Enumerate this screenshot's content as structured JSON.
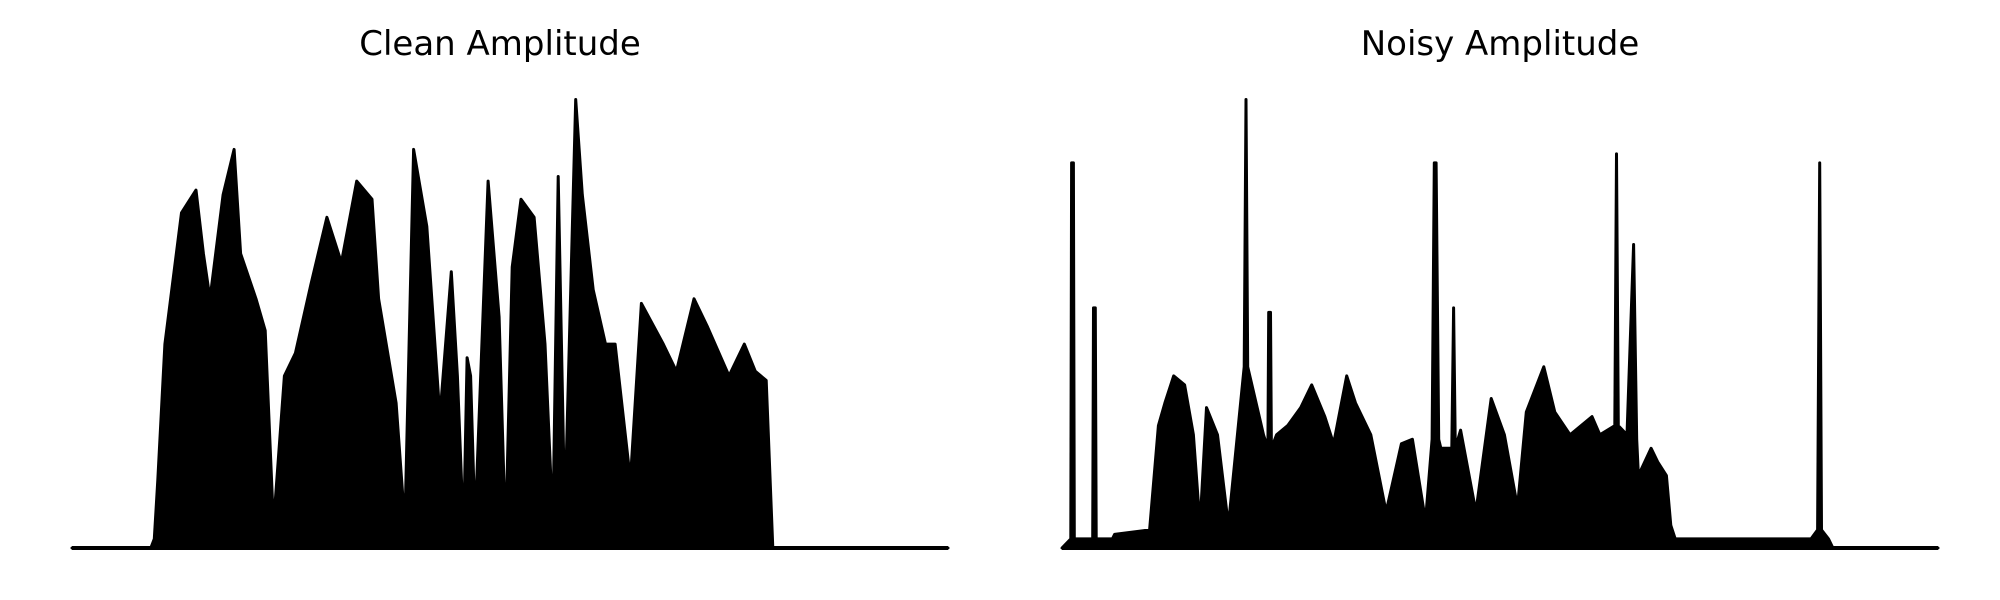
{
  "chart_data": [
    {
      "type": "area",
      "title": "Clean Amplitude",
      "xlabel": "",
      "ylabel": "",
      "axes": "off",
      "grid": false,
      "color": "#000000",
      "xlim": [
        0,
        2000
      ],
      "ylim": [
        0,
        1.0
      ],
      "x": [
        0,
        180,
        188,
        196,
        212,
        250,
        283,
        300,
        315,
        345,
        370,
        385,
        420,
        441,
        460,
        485,
        510,
        545,
        582,
        615,
        650,
        685,
        700,
        740,
        760,
        780,
        810,
        840,
        866,
        880,
        894,
        902,
        910,
        920,
        950,
        975,
        990,
        1005,
        1025,
        1055,
        1080,
        1098,
        1110,
        1125,
        1150,
        1165,
        1190,
        1218,
        1240,
        1275,
        1300,
        1350,
        1380,
        1420,
        1450,
        1500,
        1535,
        1560,
        1585,
        1600,
        2000
      ],
      "y": [
        0,
        0,
        0.02,
        0.15,
        0.45,
        0.74,
        0.79,
        0.65,
        0.55,
        0.78,
        0.88,
        0.65,
        0.55,
        0.48,
        0.05,
        0.38,
        0.43,
        0.58,
        0.73,
        0.63,
        0.81,
        0.77,
        0.55,
        0.32,
        0.05,
        0.88,
        0.71,
        0.29,
        0.61,
        0.38,
        0.03,
        0.42,
        0.38,
        0.05,
        0.81,
        0.51,
        0.02,
        0.62,
        0.77,
        0.73,
        0.45,
        0.05,
        0.82,
        0.07,
        0.99,
        0.78,
        0.57,
        0.45,
        0.45,
        0.15,
        0.54,
        0.45,
        0.39,
        0.55,
        0.49,
        0.38,
        0.45,
        0.39,
        0.37,
        0.0,
        0.0
      ]
    },
    {
      "type": "area",
      "title": "Noisy Amplitude",
      "xlabel": "",
      "ylabel": "",
      "axes": "off",
      "grid": false,
      "color": "#000000",
      "xlim": [
        0,
        2000
      ],
      "ylim": [
        0,
        1.0
      ],
      "x": [
        0,
        20,
        22,
        26,
        28,
        70,
        72,
        76,
        78,
        115,
        120,
        200,
        220,
        235,
        255,
        280,
        300,
        315,
        330,
        355,
        380,
        416,
        420,
        424,
        460,
        470,
        472,
        476,
        478,
        490,
        515,
        545,
        570,
        600,
        620,
        650,
        670,
        705,
        740,
        775,
        800,
        830,
        845,
        850,
        854,
        860,
        865,
        890,
        894,
        898,
        910,
        945,
        980,
        1010,
        1040,
        1060,
        1100,
        1125,
        1160,
        1210,
        1228,
        1262,
        1266,
        1270,
        1290,
        1305,
        1312,
        1316,
        1345,
        1360,
        1380,
        1390,
        1400,
        1710,
        1725,
        1730,
        1734,
        1750,
        1760,
        2000
      ],
      "y": [
        0,
        0.02,
        0.85,
        0.85,
        0.02,
        0.02,
        0.53,
        0.53,
        0.02,
        0.02,
        0.03,
        0.04,
        0.27,
        0.32,
        0.38,
        0.36,
        0.25,
        0.05,
        0.31,
        0.25,
        0.05,
        0.4,
        0.99,
        0.4,
        0.25,
        0.22,
        0.52,
        0.52,
        0.22,
        0.25,
        0.27,
        0.31,
        0.36,
        0.29,
        0.23,
        0.38,
        0.32,
        0.25,
        0.08,
        0.23,
        0.24,
        0.06,
        0.24,
        0.85,
        0.85,
        0.24,
        0.22,
        0.22,
        0.53,
        0.22,
        0.26,
        0.08,
        0.33,
        0.25,
        0.09,
        0.3,
        0.4,
        0.3,
        0.25,
        0.29,
        0.25,
        0.27,
        0.87,
        0.27,
        0.25,
        0.67,
        0.24,
        0.16,
        0.22,
        0.19,
        0.16,
        0.05,
        0.02,
        0.02,
        0.04,
        0.85,
        0.04,
        0.02,
        0.0,
        0.0
      ]
    }
  ]
}
